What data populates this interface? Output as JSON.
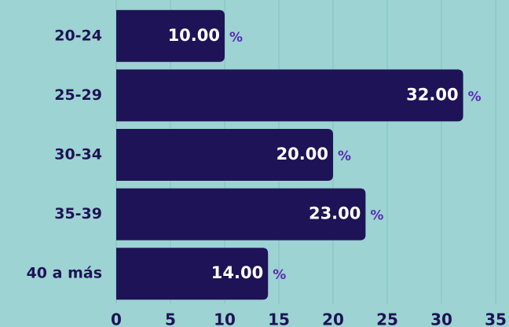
{
  "chart_data": {
    "type": "bar",
    "orientation": "horizontal",
    "categories": [
      "20-24",
      "25-29",
      "30-34",
      "35-39",
      "40 a más"
    ],
    "values": [
      10,
      32,
      20,
      23,
      14
    ],
    "value_labels": [
      "10.00",
      "32.00",
      "20.00",
      "23.00",
      "14.00"
    ],
    "unit": "%",
    "color": "#1e1356",
    "xlim": [
      0,
      35
    ],
    "xticks": [
      0,
      5,
      10,
      15,
      20,
      25,
      30,
      35
    ],
    "grid": true
  }
}
